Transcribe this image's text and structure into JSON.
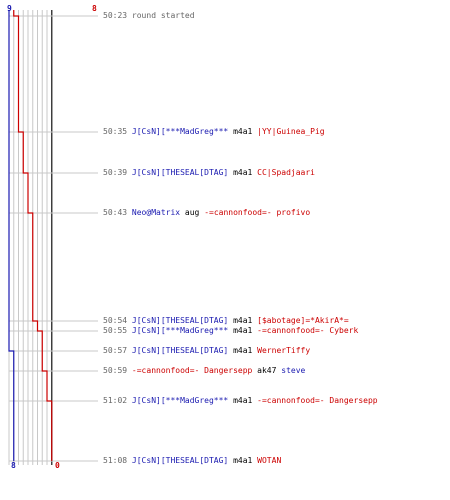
{
  "colors": {
    "blue": "#1a1ab0",
    "red": "#cc0000",
    "grid": "#c8c8c8",
    "time": "#666666"
  },
  "scores": {
    "blue_start": "9",
    "red_start": "8",
    "blue_end": "8",
    "red_end": "0"
  },
  "log": [
    {
      "time": "50:23",
      "note": "round started"
    },
    {
      "time": "50:35",
      "killer": "J[CsN][***MadGreg***",
      "killer_team": "blue",
      "weapon": "m4a1",
      "victim": "|YY|Guinea_Pig",
      "victim_team": "red"
    },
    {
      "time": "50:39",
      "killer": "J[CsN][THESEAL[DTAG]",
      "killer_team": "blue",
      "weapon": "m4a1",
      "victim": "CC|Spadjaari",
      "victim_team": "red"
    },
    {
      "time": "50:43",
      "killer": "Neo@Matrix",
      "killer_team": "blue",
      "weapon": "aug",
      "victim": "-=cannonfood=- profivo",
      "victim_team": "red"
    },
    {
      "time": "50:54",
      "killer": "J[CsN][THESEAL[DTAG]",
      "killer_team": "blue",
      "weapon": "m4a1",
      "victim": "[$abotage]=*AkirA*=",
      "victim_team": "red"
    },
    {
      "time": "50:55",
      "killer": "J[CsN][***MadGreg***",
      "killer_team": "blue",
      "weapon": "m4a1",
      "victim": "-=cannonfood=- Cyberk",
      "victim_team": "red"
    },
    {
      "time": "50:57",
      "killer": "J[CsN][THESEAL[DTAG]",
      "killer_team": "blue",
      "weapon": "m4a1",
      "victim": "WernerTiffy",
      "victim_team": "red"
    },
    {
      "time": "50:59",
      "killer": "-=cannonfood=- Dangersepp",
      "killer_team": "red",
      "weapon": "ak47",
      "victim": "steve",
      "victim_team": "blue"
    },
    {
      "time": "51:02",
      "killer": "J[CsN][***MadGreg***",
      "killer_team": "blue",
      "weapon": "m4a1",
      "victim": "-=cannonfood=- Dangersepp",
      "victim_team": "red"
    },
    {
      "time": "51:08",
      "killer": "J[CsN][THESEAL[DTAG]",
      "killer_team": "blue",
      "weapon": "m4a1",
      "victim": "WOTAN",
      "victim_team": "red"
    }
  ],
  "chart_data": {
    "type": "line",
    "x_unit": "seconds since round start",
    "event_times": [
      12,
      16,
      20,
      31,
      32,
      34,
      36,
      39,
      45
    ],
    "series": [
      {
        "team": "blue",
        "alive": [
          9,
          9,
          9,
          9,
          9,
          9,
          9,
          8,
          8,
          8
        ]
      },
      {
        "team": "red",
        "alive": [
          8,
          7,
          6,
          5,
          4,
          3,
          2,
          2,
          1,
          0
        ]
      }
    ],
    "y_range": [
      0,
      9
    ]
  }
}
